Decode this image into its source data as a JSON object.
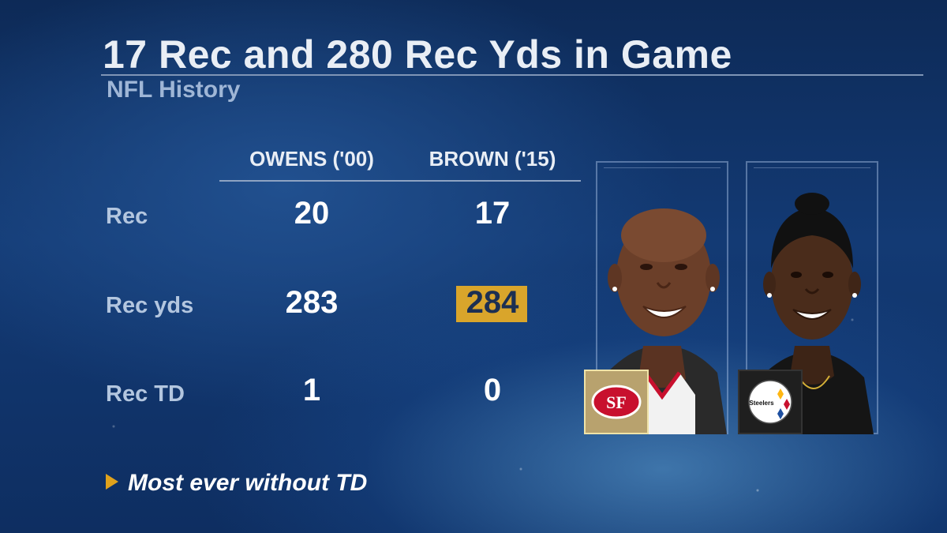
{
  "header": {
    "title": "17 Rec and 280 Rec Yds in Game",
    "subtitle": "NFL History"
  },
  "columns": [
    {
      "label": "OWENS ('00)",
      "team": "49ers",
      "logo_text": "SF"
    },
    {
      "label": "BROWN ('15)",
      "team": "Steelers",
      "logo_text": "Steelers"
    }
  ],
  "rows": [
    {
      "label": "Rec",
      "values": [
        "20",
        "17"
      ]
    },
    {
      "label": "Rec yds",
      "values": [
        "283",
        "284"
      ],
      "highlight_index": 1
    },
    {
      "label": "Rec TD",
      "values": [
        "1",
        "0"
      ]
    }
  ],
  "footnote": "Most ever without TD",
  "colors": {
    "highlight": "#d9a52b",
    "accent_triangle": "#e0a21c",
    "niners_red": "#c8102e",
    "niners_gold": "#b8a26e"
  }
}
